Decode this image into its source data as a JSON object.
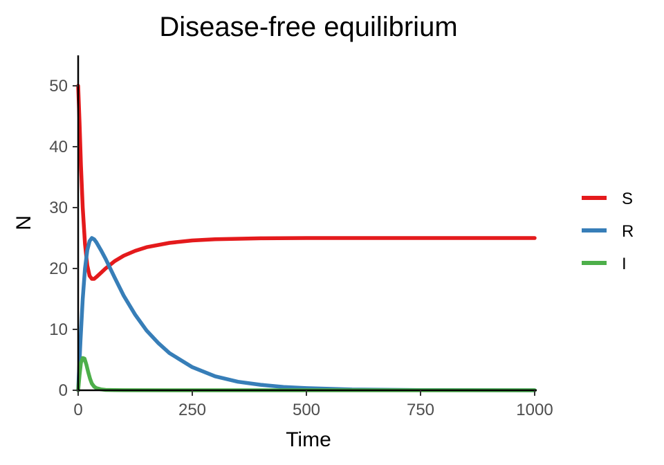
{
  "chart_data": {
    "type": "line",
    "title": "Disease-free equilibrium",
    "xlabel": "Time",
    "ylabel": "N",
    "xlim": [
      0,
      1000
    ],
    "ylim": [
      0,
      55
    ],
    "xticks": [
      0,
      250,
      500,
      750,
      1000
    ],
    "yticks": [
      0,
      10,
      20,
      30,
      40,
      50
    ],
    "grid": false,
    "legend_position": "right",
    "series": [
      {
        "name": "S",
        "color": "#e41a1c",
        "x": [
          0,
          3,
          6,
          10,
          15,
          20,
          25,
          30,
          35,
          40,
          50,
          60,
          80,
          100,
          125,
          150,
          200,
          250,
          300,
          400,
          500,
          600,
          750,
          1000
        ],
        "y": [
          50,
          44,
          37,
          30,
          24,
          20.5,
          18.8,
          18.3,
          18.3,
          18.6,
          19.3,
          20.0,
          21.2,
          22.1,
          22.9,
          23.5,
          24.2,
          24.6,
          24.8,
          24.95,
          25,
          25,
          25,
          25
        ]
      },
      {
        "name": "R",
        "color": "#377eb8",
        "x": [
          0,
          5,
          10,
          15,
          20,
          25,
          30,
          35,
          40,
          50,
          60,
          80,
          100,
          125,
          150,
          175,
          200,
          250,
          300,
          350,
          400,
          450,
          500,
          600,
          750,
          1000
        ],
        "y": [
          0,
          8,
          15,
          20,
          23,
          24.5,
          25,
          24.8,
          24.3,
          23,
          21.6,
          18.5,
          15.5,
          12.4,
          9.8,
          7.8,
          6.1,
          3.8,
          2.3,
          1.4,
          0.9,
          0.55,
          0.35,
          0.12,
          0.03,
          0
        ]
      },
      {
        "name": "I",
        "color": "#4daf4a",
        "x": [
          0,
          3,
          6,
          10,
          14,
          18,
          22,
          26,
          30,
          35,
          40,
          50,
          60,
          80,
          100,
          200,
          500,
          1000
        ],
        "y": [
          0,
          2.5,
          4.5,
          5.3,
          5.2,
          4.2,
          3.0,
          1.9,
          1.1,
          0.6,
          0.35,
          0.15,
          0.06,
          0.02,
          0.01,
          0,
          0,
          0
        ]
      }
    ]
  }
}
